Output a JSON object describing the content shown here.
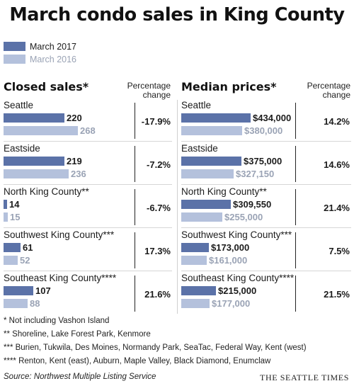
{
  "title": "March condo sales in King County",
  "legend": [
    {
      "label": "March 2017",
      "color": "#5b72a8"
    },
    {
      "label": "March 2016",
      "color": "#b4c1dc"
    }
  ],
  "colors": {
    "y2017": "#5b72a8",
    "y2016": "#b4c1dc",
    "label2016": "#9aa3b5"
  },
  "left_panel": {
    "header": "Closed sales*",
    "pct_header_line1": "Percentage",
    "pct_header_line2": "change"
  },
  "right_panel": {
    "header": "Median prices*",
    "pct_header_line1": "Percentage",
    "pct_header_line2": "change"
  },
  "chart_data": [
    {
      "type": "bar",
      "title": "Closed sales*",
      "categories": [
        "Seattle",
        "Eastside",
        "North King County**",
        "Southwest King County***",
        "Southeast King County****"
      ],
      "series": [
        {
          "name": "March 2017",
          "values": [
            220,
            219,
            14,
            61,
            107
          ],
          "labels": [
            "220",
            "219",
            "14",
            "61",
            "107"
          ]
        },
        {
          "name": "March 2016",
          "values": [
            268,
            236,
            15,
            52,
            88
          ],
          "labels": [
            "268",
            "236",
            "15",
            "52",
            "88"
          ]
        }
      ],
      "percentage_change": [
        "-17.9%",
        "-7.2%",
        "-6.7%",
        "17.3%",
        "21.6%"
      ]
    },
    {
      "type": "bar",
      "title": "Median prices*",
      "categories": [
        "Seattle",
        "Eastside",
        "North King County**",
        "Southwest King County***",
        "Southeast King County****"
      ],
      "series": [
        {
          "name": "March 2017",
          "values": [
            434000,
            375000,
            309550,
            173000,
            215000
          ],
          "labels": [
            "$434,000",
            "$375,000",
            "$309,550",
            "$173,000",
            "$215,000"
          ]
        },
        {
          "name": "March 2016",
          "values": [
            380000,
            327150,
            255000,
            161000,
            177000
          ],
          "labels": [
            "$380,000",
            "$327,150",
            "$255,000",
            "$161,000",
            "$177,000"
          ]
        }
      ],
      "percentage_change": [
        "14.2%",
        "14.6%",
        "21.4%",
        "7.5%",
        "21.5%"
      ]
    }
  ],
  "footnotes": [
    "* Not including Vashon Island",
    "** Shoreline, Lake Forest Park, Kenmore",
    "*** Burien, Tukwila, Des Moines, Normandy Park, SeaTac, Federal Way, Kent (west)",
    "**** Renton, Kent (east), Auburn, Maple Valley, Black Diamond, Enumclaw"
  ],
  "source": "Source: Northwest Multiple Listing Service",
  "brand": "THE SEATTLE TIMES"
}
